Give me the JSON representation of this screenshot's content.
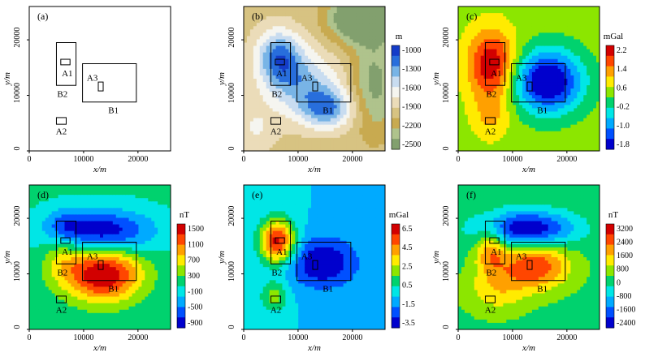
{
  "figure": {
    "description_units": {
      "x": "x/m",
      "y": "y/m"
    }
  },
  "chart_data": [
    {
      "type": "heatmap",
      "panel": "(a)",
      "field": "none",
      "xlabel": "x/m",
      "ylabel": "y/m",
      "xlim": [
        0,
        26000
      ],
      "ylim": [
        0,
        26000
      ],
      "xticks": [
        "0",
        "10000",
        "20000"
      ],
      "yticks": [
        "0",
        "10000",
        "20000"
      ],
      "colorbar": null,
      "blobs": []
    },
    {
      "type": "heatmap",
      "panel": "(b)",
      "field": "terrain",
      "xlabel": "x/m",
      "ylabel": "y/m",
      "xlim": [
        0,
        26000
      ],
      "ylim": [
        0,
        26000
      ],
      "xticks": [
        "0",
        "10000",
        "20000"
      ],
      "yticks": [
        "0",
        "10000",
        "20000"
      ],
      "background": 0.35,
      "colorbar": {
        "unit": "m",
        "ticks": [
          "-1000",
          "-1300",
          "-1600",
          "-1900",
          "-2200",
          "-2500"
        ],
        "palette": "terrain"
      },
      "blobs": [
        {
          "x": 6500,
          "y": 17000,
          "a": 0.45,
          "sx": 3000,
          "sy": 3500
        },
        {
          "x": 11000,
          "y": 12000,
          "a": 0.35,
          "sx": 5000,
          "sy": 4000
        },
        {
          "x": 15500,
          "y": 7500,
          "a": 0.4,
          "sx": 3500,
          "sy": 2500
        },
        {
          "x": 22000,
          "y": 24000,
          "a": -0.6,
          "sx": 4000,
          "sy": 3000
        },
        {
          "x": 24000,
          "y": 12000,
          "a": -0.3,
          "sx": 3000,
          "sy": 6000
        },
        {
          "x": 2000,
          "y": 4000,
          "a": 0.15,
          "sx": 3000,
          "sy": 3000
        }
      ]
    },
    {
      "type": "heatmap",
      "panel": "(c)",
      "field": "gravity",
      "xlabel": "x/m",
      "ylabel": "y/m",
      "xlim": [
        0,
        26000
      ],
      "ylim": [
        0,
        26000
      ],
      "xticks": [
        "0",
        "10000",
        "20000"
      ],
      "yticks": [
        "0",
        "10000",
        "20000"
      ],
      "background": 0.55,
      "colorbar": {
        "unit": "mGal",
        "ticks": [
          "2.2",
          "1.4",
          "0.6",
          "-0.2",
          "-1.0",
          "-1.8"
        ],
        "palette": "rainbow"
      },
      "blobs": [
        {
          "x": 6200,
          "y": 15500,
          "a": 0.45,
          "sx": 3200,
          "sy": 4500
        },
        {
          "x": 6000,
          "y": 6000,
          "a": 0.15,
          "sx": 2500,
          "sy": 3000
        },
        {
          "x": 16500,
          "y": 12500,
          "a": -0.6,
          "sx": 4500,
          "sy": 4000
        }
      ]
    },
    {
      "type": "heatmap",
      "panel": "(d)",
      "field": "magnetic",
      "xlabel": "x/m",
      "ylabel": "y/m",
      "xlim": [
        0,
        26000
      ],
      "ylim": [
        0,
        26000
      ],
      "xticks": [
        "0",
        "10000",
        "20000"
      ],
      "yticks": [
        "0",
        "10000",
        "20000"
      ],
      "background": 0.42,
      "colorbar": {
        "unit": "nT",
        "ticks": [
          "1500",
          "1100",
          "700",
          "300",
          "-100",
          "-500",
          "-900"
        ],
        "palette": "rainbow"
      },
      "blobs": [
        {
          "x": 13500,
          "y": 10000,
          "a": 0.6,
          "sx": 5000,
          "sy": 3500
        },
        {
          "x": 13500,
          "y": 17500,
          "a": -0.42,
          "sx": 6500,
          "sy": 2800
        },
        {
          "x": 6000,
          "y": 13000,
          "a": 0.15,
          "sx": 2500,
          "sy": 3000
        },
        {
          "x": 6500,
          "y": 19000,
          "a": -0.15,
          "sx": 2500,
          "sy": 2000
        }
      ]
    },
    {
      "type": "heatmap",
      "panel": "(e)",
      "field": "gravity",
      "xlabel": "x/m",
      "ylabel": "y/m",
      "xlim": [
        0,
        26000
      ],
      "ylim": [
        0,
        26000
      ],
      "xticks": [
        "0",
        "10000",
        "20000"
      ],
      "yticks": [
        "0",
        "10000",
        "20000"
      ],
      "background": 0.3,
      "colorbar": {
        "unit": "mGal",
        "ticks": [
          "6.5",
          "4.5",
          "2.5",
          "0.5",
          "-1.5",
          "-3.5"
        ],
        "palette": "rainbow"
      },
      "blobs": [
        {
          "x": 6200,
          "y": 15800,
          "a": 0.65,
          "sx": 2300,
          "sy": 2800
        },
        {
          "x": 5600,
          "y": 6000,
          "a": 0.25,
          "sx": 1800,
          "sy": 2000
        },
        {
          "x": 14500,
          "y": 12000,
          "a": -0.3,
          "sx": 4500,
          "sy": 3200
        }
      ]
    },
    {
      "type": "heatmap",
      "panel": "(f)",
      "field": "magnetic",
      "xlabel": "x/m",
      "ylabel": "y/m",
      "xlim": [
        0,
        26000
      ],
      "ylim": [
        0,
        26000
      ],
      "xticks": [
        "0",
        "10000",
        "20000"
      ],
      "yticks": [
        "0",
        "10000",
        "20000"
      ],
      "background": 0.47,
      "colorbar": {
        "unit": "nT",
        "ticks": [
          "3200",
          "2400",
          "1600",
          "800",
          "0",
          "-800",
          "-1600",
          "-2400"
        ],
        "palette": "rainbow"
      },
      "blobs": [
        {
          "x": 14000,
          "y": 11500,
          "a": 0.42,
          "sx": 4500,
          "sy": 3000
        },
        {
          "x": 6000,
          "y": 14500,
          "a": 0.3,
          "sx": 2000,
          "sy": 3000
        },
        {
          "x": 12500,
          "y": 18000,
          "a": -0.5,
          "sx": 6000,
          "sy": 2300
        },
        {
          "x": 7000,
          "y": 7000,
          "a": 0.18,
          "sx": 4000,
          "sy": 3000
        }
      ]
    }
  ],
  "boxes": [
    {
      "label": "A1",
      "x0": 5800,
      "x1": 7500,
      "y0": 15500,
      "y1": 16500,
      "lx": 7000,
      "ly": 14000
    },
    {
      "label": "A2",
      "x0": 5000,
      "x1": 6800,
      "y0": 4800,
      "y1": 6000,
      "lx": 5900,
      "ly": 3600
    },
    {
      "label": "A3",
      "x0": 12700,
      "x1": 13600,
      "y0": 10800,
      "y1": 12400,
      "lx": 11600,
      "ly": 13200
    },
    {
      "label": "B1",
      "x0": 9800,
      "x1": 19700,
      "y0": 8800,
      "y1": 15700,
      "lx": 15500,
      "ly": 7400
    },
    {
      "label": "B2",
      "x0": 5000,
      "x1": 8600,
      "y0": 11800,
      "y1": 19500,
      "lx": 6100,
      "ly": 10300
    }
  ]
}
